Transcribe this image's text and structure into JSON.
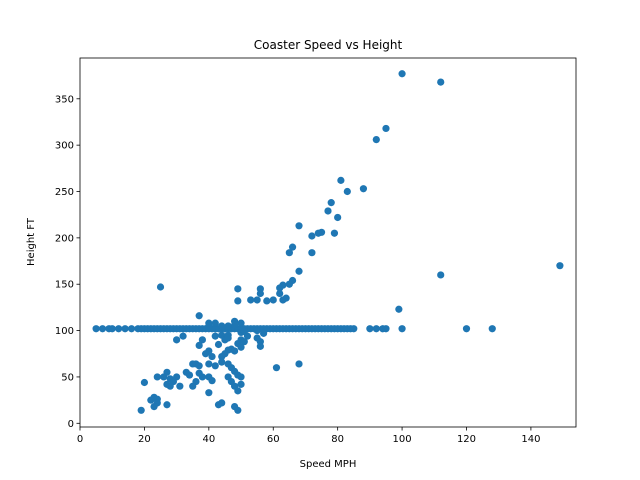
{
  "chart_data": {
    "type": "scatter",
    "title": "Coaster Speed vs Height",
    "xlabel": "Speed MPH",
    "ylabel": "Height FT",
    "xlim": [
      0,
      154
    ],
    "ylim": [
      -4,
      394
    ],
    "xticks": [
      0,
      20,
      40,
      60,
      80,
      100,
      120,
      140
    ],
    "yticks": [
      0,
      50,
      100,
      150,
      200,
      250,
      300,
      350
    ],
    "grid": false,
    "point_color": "#1f77b4",
    "series": [
      {
        "points": [
          [
            5,
            102
          ],
          [
            7,
            102
          ],
          [
            9,
            102
          ],
          [
            10,
            102
          ],
          [
            12,
            102
          ],
          [
            14,
            102
          ],
          [
            16,
            102
          ],
          [
            18,
            102
          ],
          [
            19,
            102
          ],
          [
            20,
            102
          ],
          [
            21,
            102
          ],
          [
            22,
            102
          ],
          [
            23,
            102
          ],
          [
            24,
            102
          ],
          [
            25,
            102
          ],
          [
            26,
            102
          ],
          [
            27,
            102
          ],
          [
            28,
            102
          ],
          [
            29,
            102
          ],
          [
            30,
            102
          ],
          [
            31,
            102
          ],
          [
            32,
            102
          ],
          [
            33,
            102
          ],
          [
            34,
            102
          ],
          [
            35,
            102
          ],
          [
            36,
            102
          ],
          [
            37,
            102
          ],
          [
            38,
            102
          ],
          [
            39,
            102
          ],
          [
            40,
            102
          ],
          [
            41,
            102
          ],
          [
            42,
            102
          ],
          [
            43,
            102
          ],
          [
            44,
            102
          ],
          [
            45,
            102
          ],
          [
            46,
            102
          ],
          [
            47,
            102
          ],
          [
            48,
            102
          ],
          [
            49,
            102
          ],
          [
            50,
            102
          ],
          [
            51,
            102
          ],
          [
            52,
            102
          ],
          [
            53,
            102
          ],
          [
            54,
            102
          ],
          [
            55,
            102
          ],
          [
            56,
            102
          ],
          [
            57,
            102
          ],
          [
            58,
            102
          ],
          [
            59,
            102
          ],
          [
            60,
            102
          ],
          [
            61,
            102
          ],
          [
            62,
            102
          ],
          [
            63,
            102
          ],
          [
            64,
            102
          ],
          [
            65,
            102
          ],
          [
            66,
            102
          ],
          [
            67,
            102
          ],
          [
            68,
            102
          ],
          [
            69,
            102
          ],
          [
            70,
            102
          ],
          [
            71,
            102
          ],
          [
            72,
            102
          ],
          [
            73,
            102
          ],
          [
            74,
            102
          ],
          [
            75,
            102
          ],
          [
            76,
            102
          ],
          [
            77,
            102
          ],
          [
            78,
            102
          ],
          [
            79,
            102
          ],
          [
            80,
            102
          ],
          [
            81,
            102
          ],
          [
            82,
            102
          ],
          [
            83,
            102
          ],
          [
            84,
            102
          ],
          [
            85,
            102
          ],
          [
            90,
            102
          ],
          [
            92,
            102
          ],
          [
            94,
            102
          ],
          [
            95,
            102
          ],
          [
            100,
            102
          ],
          [
            120,
            102
          ],
          [
            128,
            102
          ],
          [
            100,
            377
          ],
          [
            112,
            368
          ],
          [
            95,
            318
          ],
          [
            92,
            306
          ],
          [
            81,
            262
          ],
          [
            83,
            250
          ],
          [
            88,
            253
          ],
          [
            78,
            238
          ],
          [
            77,
            229
          ],
          [
            80,
            222
          ],
          [
            75,
            206
          ],
          [
            74,
            205
          ],
          [
            79,
            205
          ],
          [
            68,
            213
          ],
          [
            72,
            202
          ],
          [
            72,
            184
          ],
          [
            65,
            184
          ],
          [
            66,
            190
          ],
          [
            68,
            164
          ],
          [
            66,
            154
          ],
          [
            65,
            150
          ],
          [
            63,
            149
          ],
          [
            62,
            146
          ],
          [
            62,
            140
          ],
          [
            64,
            135
          ],
          [
            63,
            133
          ],
          [
            60,
            133
          ],
          [
            56,
            145
          ],
          [
            56,
            140
          ],
          [
            58,
            132
          ],
          [
            55,
            133
          ],
          [
            53,
            133
          ],
          [
            49,
            145
          ],
          [
            49,
            132
          ],
          [
            48,
            110
          ],
          [
            48,
            106
          ],
          [
            50,
            108
          ],
          [
            46,
            105
          ],
          [
            44,
            105
          ],
          [
            42,
            108
          ],
          [
            40,
            108
          ],
          [
            40,
            105
          ],
          [
            37,
            116
          ],
          [
            25,
            147
          ],
          [
            112,
            160
          ],
          [
            149,
            170
          ],
          [
            99,
            123
          ],
          [
            30,
            90
          ],
          [
            32,
            94
          ],
          [
            38,
            90
          ],
          [
            42,
            94
          ],
          [
            44,
            95
          ],
          [
            45,
            90
          ],
          [
            46,
            95
          ],
          [
            46,
            92
          ],
          [
            50,
            90
          ],
          [
            49,
            86
          ],
          [
            50,
            82
          ],
          [
            47,
            80
          ],
          [
            46,
            79
          ],
          [
            48,
            78
          ],
          [
            45,
            75
          ],
          [
            44,
            72
          ],
          [
            41,
            72
          ],
          [
            39,
            75
          ],
          [
            40,
            78
          ],
          [
            37,
            84
          ],
          [
            43,
            85
          ],
          [
            50,
            98
          ],
          [
            51,
            88
          ],
          [
            52,
            94
          ],
          [
            55,
            92
          ],
          [
            56,
            88
          ],
          [
            57,
            97
          ],
          [
            55,
            100
          ],
          [
            56,
            83
          ],
          [
            51,
            99
          ],
          [
            35,
            64
          ],
          [
            36,
            64
          ],
          [
            37,
            62
          ],
          [
            37,
            54
          ],
          [
            40,
            64
          ],
          [
            42,
            62
          ],
          [
            44,
            66
          ],
          [
            46,
            64
          ],
          [
            47,
            60
          ],
          [
            48,
            56
          ],
          [
            49,
            52
          ],
          [
            50,
            50
          ],
          [
            38,
            50
          ],
          [
            40,
            50
          ],
          [
            41,
            46
          ],
          [
            36,
            45
          ],
          [
            35,
            40
          ],
          [
            33,
            55
          ],
          [
            34,
            52
          ],
          [
            30,
            50
          ],
          [
            28,
            48
          ],
          [
            29,
            45
          ],
          [
            27,
            55
          ],
          [
            26,
            50
          ],
          [
            24,
            50
          ],
          [
            27,
            42
          ],
          [
            28,
            40
          ],
          [
            31,
            40
          ],
          [
            23,
            28
          ],
          [
            24,
            26
          ],
          [
            24,
            22
          ],
          [
            22,
            25
          ],
          [
            23,
            18
          ],
          [
            19,
            14
          ],
          [
            20,
            44
          ],
          [
            27,
            20
          ],
          [
            40,
            33
          ],
          [
            43,
            20
          ],
          [
            44,
            22
          ],
          [
            46,
            50
          ],
          [
            47,
            45
          ],
          [
            48,
            40
          ],
          [
            49,
            35
          ],
          [
            48,
            18
          ],
          [
            49,
            14
          ],
          [
            50,
            42
          ],
          [
            61,
            60
          ],
          [
            68,
            64
          ]
        ]
      }
    ]
  }
}
